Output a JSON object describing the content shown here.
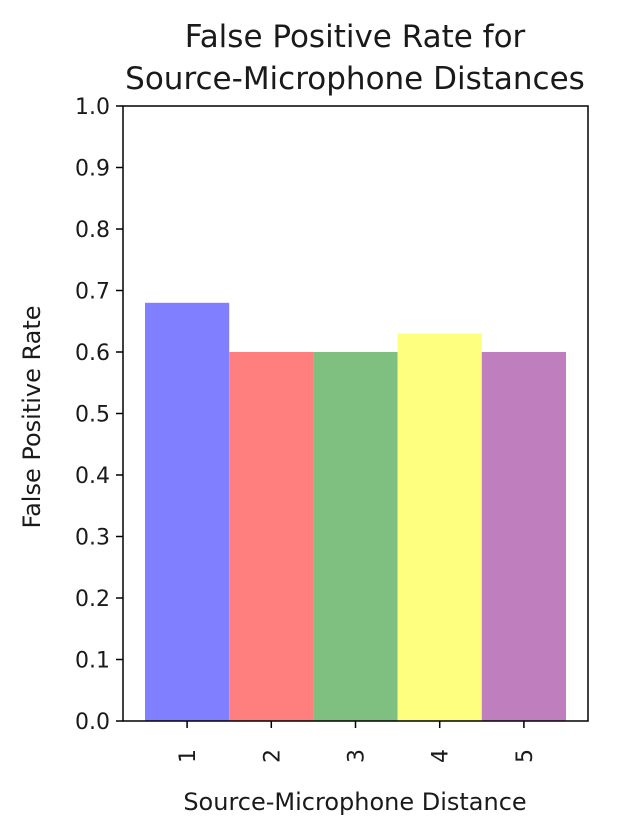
{
  "chart_data": {
    "type": "bar",
    "title_lines": [
      "False Positive Rate for",
      "Source-Microphone Distances"
    ],
    "xlabel": "Source-Microphone Distance",
    "ylabel": "False Positive Rate",
    "categories": [
      "1",
      "2",
      "3",
      "4",
      "5"
    ],
    "values": [
      0.68,
      0.6,
      0.6,
      0.63,
      0.6
    ],
    "colors": [
      "#7f7fff",
      "#ff7f7f",
      "#7fbf7f",
      "#ffff7f",
      "#bf7fbf"
    ],
    "ylim": [
      0,
      1.0
    ],
    "yticks": [
      "0.0",
      "0.1",
      "0.2",
      "0.3",
      "0.4",
      "0.5",
      "0.6",
      "0.7",
      "0.8",
      "0.9",
      "1.0"
    ],
    "xtick_rotation": "vertical",
    "grid": false,
    "legend": "none"
  }
}
